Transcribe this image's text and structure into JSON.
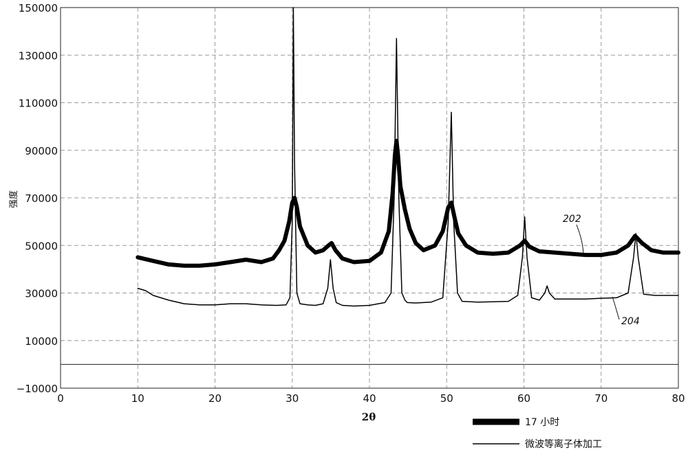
{
  "chart_data": {
    "type": "line",
    "title": "",
    "xlabel": "2θ",
    "ylabel": "强度",
    "xlim": [
      0,
      80
    ],
    "ylim": [
      -10000,
      150000
    ],
    "x_ticks": [
      "0",
      "10",
      "20",
      "30",
      "40",
      "50",
      "60",
      "70",
      "80"
    ],
    "y_ticks": [
      "150000",
      "130000",
      "110000",
      "90000",
      "70000",
      "50000",
      "30000",
      "10000",
      "−10000"
    ],
    "grid": true,
    "legend_position": "bottom-right",
    "series": [
      {
        "name": "17 小时",
        "callout": "202",
        "style": "thick",
        "color": "#000000",
        "x": [
          10,
          12,
          14,
          16,
          18,
          20,
          22,
          24,
          26,
          27.5,
          28.3,
          29,
          29.6,
          30.0,
          30.3,
          30.6,
          31,
          32,
          33,
          34,
          34.7,
          35.1,
          35.6,
          36.5,
          38,
          40,
          41.5,
          42.5,
          43.0,
          43.3,
          43.5,
          43.7,
          44.0,
          44.6,
          45.2,
          46,
          47,
          48.5,
          49.5,
          50.2,
          50.6,
          51,
          51.5,
          52.5,
          54,
          56,
          58,
          59.5,
          60.1,
          60.7,
          62,
          64,
          66,
          68,
          70,
          72,
          73.5,
          74.4,
          75.3,
          76.5,
          78,
          80
        ],
        "y": [
          45000,
          43500,
          42000,
          41500,
          41500,
          42000,
          43000,
          44000,
          43000,
          44500,
          48000,
          52000,
          60000,
          68000,
          70000,
          66000,
          58000,
          50000,
          47000,
          48000,
          50000,
          51000,
          48000,
          44500,
          43000,
          43500,
          47000,
          56000,
          72000,
          88000,
          94000,
          88000,
          75000,
          65000,
          57000,
          51000,
          48000,
          50000,
          56000,
          66000,
          68000,
          62000,
          55000,
          50000,
          47000,
          46500,
          47000,
          50000,
          52000,
          49500,
          47500,
          47000,
          46500,
          46000,
          46000,
          47000,
          50000,
          54000,
          51000,
          48000,
          47000,
          47000
        ]
      },
      {
        "name": "微波等离子体加工",
        "callout": "204",
        "style": "thin",
        "color": "#000000",
        "x": [
          10,
          11,
          12,
          14,
          16,
          18,
          20,
          22,
          24,
          26,
          28,
          29.2,
          29.7,
          30.0,
          30.15,
          30.3,
          30.6,
          31.0,
          32,
          33,
          34,
          34.6,
          34.95,
          35.3,
          35.7,
          36.5,
          38,
          40,
          42,
          42.8,
          43.2,
          43.5,
          43.8,
          44.2,
          44.6,
          44.9,
          46,
          48,
          49.5,
          50.2,
          50.6,
          50.9,
          51.4,
          52,
          54,
          56,
          58,
          59.2,
          59.8,
          60.1,
          60.4,
          61,
          62,
          62.7,
          63.0,
          63.3,
          64,
          66,
          68,
          70,
          72,
          73.5,
          74.2,
          74.5,
          74.8,
          75.5,
          77,
          80
        ],
        "y": [
          32000,
          31000,
          29000,
          27000,
          25500,
          25000,
          25000,
          25500,
          25500,
          25000,
          24800,
          25000,
          28000,
          60000,
          150000,
          85000,
          30000,
          25500,
          25000,
          24800,
          25500,
          32000,
          44000,
          32000,
          26000,
          24800,
          24500,
          24800,
          26000,
          30000,
          70000,
          137000,
          70000,
          30000,
          27000,
          26000,
          25800,
          26200,
          28000,
          60000,
          106000,
          60000,
          30000,
          26500,
          26200,
          26300,
          26500,
          29000,
          45000,
          62000,
          45000,
          28000,
          27000,
          30000,
          33000,
          30000,
          27500,
          27500,
          27500,
          27800,
          28000,
          30000,
          45000,
          55000,
          45000,
          29500,
          29000,
          29000
        ]
      }
    ]
  }
}
